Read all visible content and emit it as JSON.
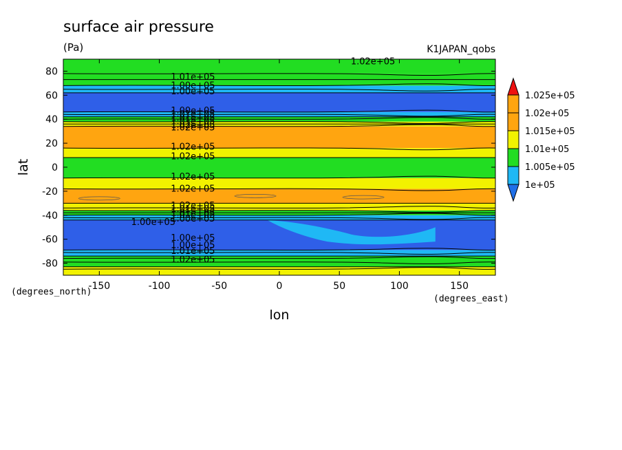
{
  "chart_data": {
    "type": "contour",
    "title": "surface air pressure",
    "units": "(Pa)",
    "source_label": "K1JAPAN_qobs",
    "xlabel": "lon",
    "ylabel": "lat",
    "x_unit_label": "(degrees_east)",
    "y_unit_label": "(degrees_north)",
    "xlim": [
      -180,
      180
    ],
    "ylim": [
      -90,
      90
    ],
    "x_ticks": [
      -150,
      -100,
      -50,
      0,
      50,
      100,
      150
    ],
    "x_tick_labels": [
      "-150",
      "-100",
      "-50",
      "0",
      "50",
      "100",
      "150"
    ],
    "y_ticks": [
      -80,
      -60,
      -40,
      -20,
      0,
      20,
      40,
      60,
      80
    ],
    "y_tick_labels": [
      "-80",
      "-60",
      "-40",
      "-20",
      "0",
      "20",
      "40",
      "60",
      "80"
    ],
    "colorbar": {
      "levels": [
        100000,
        100500,
        101000,
        101500,
        102000,
        102500
      ],
      "labels": [
        "1e+05",
        "1.005e+05",
        "1.01e+05",
        "1.015e+05",
        "1.02e+05",
        "1.025e+05"
      ],
      "colors": [
        "#2f5fe8",
        "#1fb8f5",
        "#22dd22",
        "#f2f200",
        "#ffa510",
        "#ee1111"
      ],
      "under_color": "#1f6fe8",
      "over_color": "#ee1111"
    },
    "bands": [
      {
        "lat_from": -90,
        "lat_to": -83,
        "color": "#f2f200"
      },
      {
        "lat_from": -83,
        "lat_to": -74,
        "color": "#22dd22"
      },
      {
        "lat_from": -74,
        "lat_to": -69,
        "color": "#1fb8f5"
      },
      {
        "lat_from": -69,
        "lat_to": -44,
        "color": "#2f5fe8"
      },
      {
        "lat_from": -44,
        "lat_to": -40,
        "color": "#1fb8f5"
      },
      {
        "lat_from": -40,
        "lat_to": -36,
        "color": "#22dd22"
      },
      {
        "lat_from": -36,
        "lat_to": -30,
        "color": "#f2f200"
      },
      {
        "lat_from": -30,
        "lat_to": -18,
        "color": "#ffa510"
      },
      {
        "lat_from": -18,
        "lat_to": -9,
        "color": "#f2f200"
      },
      {
        "lat_from": -9,
        "lat_to": 8,
        "color": "#22dd22"
      },
      {
        "lat_from": 8,
        "lat_to": 16,
        "color": "#f2f200"
      },
      {
        "lat_from": 16,
        "lat_to": 34,
        "color": "#ffa510"
      },
      {
        "lat_from": 34,
        "lat_to": 38,
        "color": "#f2f200"
      },
      {
        "lat_from": 38,
        "lat_to": 42,
        "color": "#22dd22"
      },
      {
        "lat_from": 42,
        "lat_to": 46,
        "color": "#1fb8f5"
      },
      {
        "lat_from": 46,
        "lat_to": 62,
        "color": "#2f5fe8"
      },
      {
        "lat_from": 62,
        "lat_to": 68,
        "color": "#1fb8f5"
      },
      {
        "lat_from": 68,
        "lat_to": 78,
        "color": "#22dd22"
      },
      {
        "lat_from": 78,
        "lat_to": 90,
        "color": "#22dd22"
      }
    ],
    "contour_lines": [
      -85,
      -83,
      -79,
      -76,
      -74,
      -71,
      -69,
      -44,
      -42,
      -40,
      -38,
      -36,
      -34,
      -30,
      -18,
      -9,
      8,
      16,
      34,
      36,
      38,
      40,
      42,
      44,
      46,
      62,
      65,
      68,
      73,
      78
    ],
    "contour_labels": [
      {
        "text": "1.02e+05",
        "lon": 78,
        "lat": 88
      },
      {
        "text": "1.01e+05",
        "lon": -72,
        "lat": 75
      },
      {
        "text": "1.00e+05",
        "lon": -72,
        "lat": 68
      },
      {
        "text": "1.00e+05",
        "lon": -72,
        "lat": 63
      },
      {
        "text": "1.00e+05",
        "lon": -72,
        "lat": 47
      },
      {
        "text": "1.01e+05",
        "lon": -72,
        "lat": 44
      },
      {
        "text": "1.01e+05",
        "lon": -72,
        "lat": 41
      },
      {
        "text": "1.01e+05",
        "lon": -72,
        "lat": 38
      },
      {
        "text": "1.02e+05",
        "lon": -72,
        "lat": 35
      },
      {
        "text": "1.02e+05",
        "lon": -72,
        "lat": 33
      },
      {
        "text": "1.02e+05",
        "lon": -72,
        "lat": 17
      },
      {
        "text": "1.02e+05",
        "lon": -72,
        "lat": 9
      },
      {
        "text": "1.02e+05",
        "lon": -72,
        "lat": -8
      },
      {
        "text": "1.02e+05",
        "lon": -72,
        "lat": -18
      },
      {
        "text": "1.02e+05",
        "lon": -72,
        "lat": -32
      },
      {
        "text": "1.01e+05",
        "lon": -72,
        "lat": -35
      },
      {
        "text": "1.01e+05",
        "lon": -72,
        "lat": -38
      },
      {
        "text": "1.01e+05",
        "lon": -72,
        "lat": -40
      },
      {
        "text": "1.00e+05",
        "lon": -72,
        "lat": -43
      },
      {
        "text": "1.00e+05",
        "lon": -105,
        "lat": -46
      },
      {
        "text": "1.00e+05",
        "lon": -72,
        "lat": -59
      },
      {
        "text": "1.00e+05",
        "lon": -72,
        "lat": -65
      },
      {
        "text": "1.01e+05",
        "lon": -72,
        "lat": -70
      },
      {
        "text": "1.02e+05",
        "lon": -72,
        "lat": -77
      }
    ]
  }
}
